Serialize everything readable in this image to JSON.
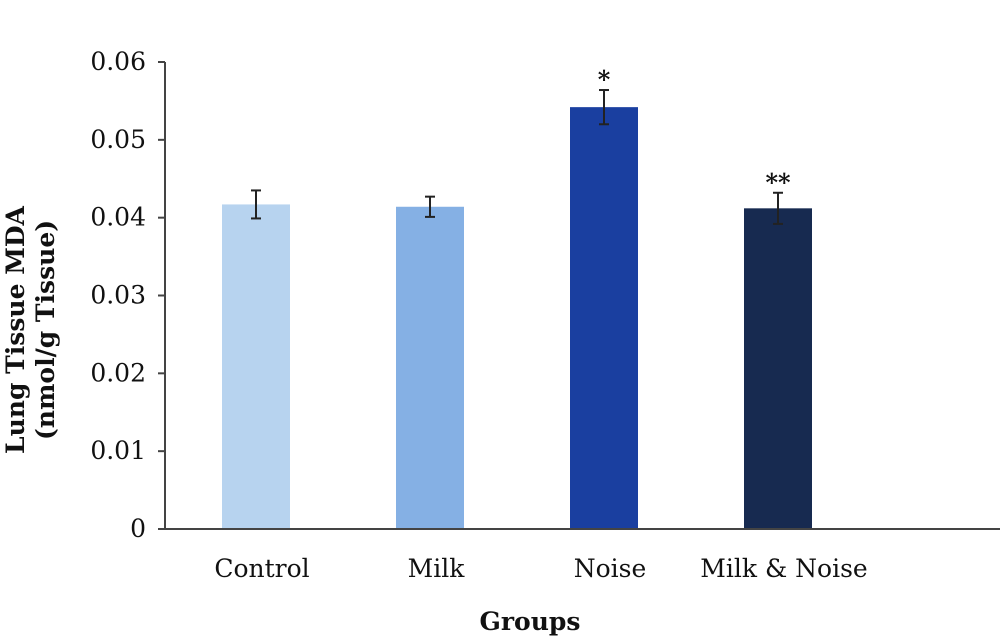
{
  "chart_data": {
    "type": "bar",
    "title": "",
    "xlabel": "Groups",
    "ylabel_line1": "Lung Tissue MDA",
    "ylabel_line2": "(nmol/g Tissue)",
    "ylim": [
      0,
      0.06
    ],
    "yticks": [
      0,
      0.01,
      0.02,
      0.03,
      0.04,
      0.05,
      0.06
    ],
    "ytick_labels": [
      "0",
      "0.01",
      "0.02",
      "0.03",
      "0.04",
      "0.05",
      "0.06"
    ],
    "categories": [
      "Control",
      "Milk",
      "Noise",
      "Milk & Noise"
    ],
    "values": [
      0.0417,
      0.0414,
      0.0542,
      0.0412
    ],
    "errors": [
      0.0018,
      0.0013,
      0.0022,
      0.002
    ],
    "annotations": [
      "",
      "",
      "*",
      "**"
    ],
    "colors": [
      "#b7d3ef",
      "#85b0e4",
      "#1a3fa0",
      "#172a50"
    ],
    "grid": false,
    "legend": "none"
  }
}
